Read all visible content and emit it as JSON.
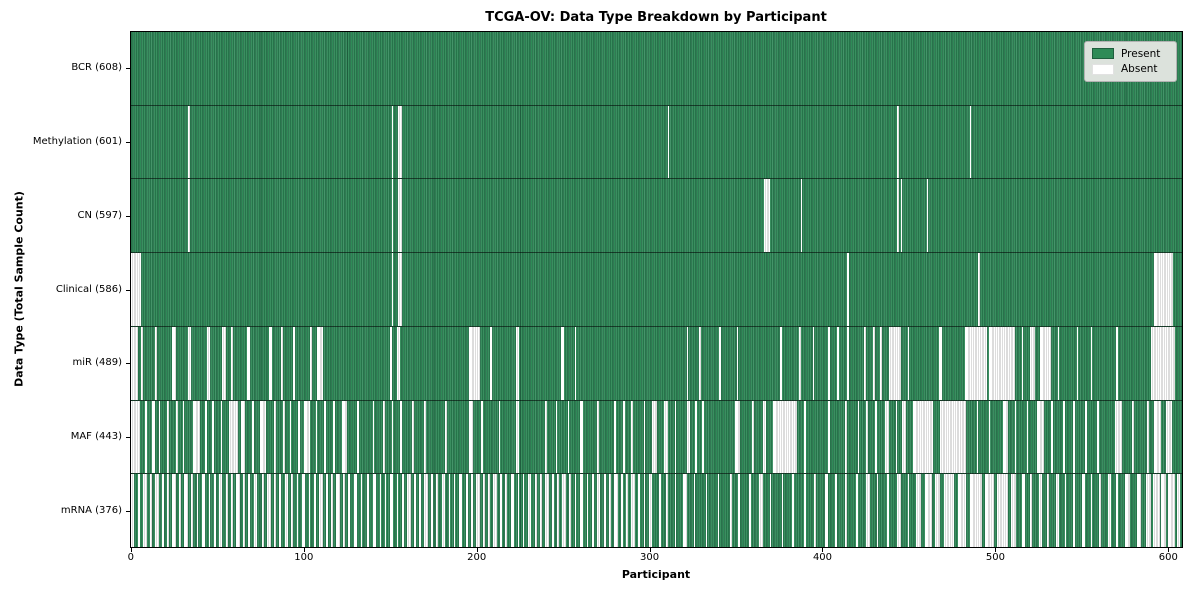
{
  "colors": {
    "present": "#2e8b57",
    "present_dark": "#1f5e3e",
    "present_light": "#45936a",
    "absent": "#ffffff",
    "absent_edge": "#b9b9b9",
    "legend_bg": "#dce2dc"
  },
  "legend": {
    "present_label": "Present",
    "absent_label": "Absent"
  },
  "chart_data": {
    "type": "heatmap",
    "title": "TCGA-OV: Data Type Breakdown by Participant",
    "xlabel": "Participant",
    "ylabel": "Data Type (Total Sample Count)",
    "legend": [
      "Present",
      "Absent"
    ],
    "legend_position": "upper right",
    "grid": false,
    "total_participants": 608,
    "x_range": [
      0,
      608
    ],
    "x_ticks": [
      0,
      100,
      200,
      300,
      400,
      500,
      600
    ],
    "rows": [
      {
        "name": "BCR",
        "label": "BCR (608)",
        "present_count": 608,
        "absent_segments": []
      },
      {
        "name": "Methylation",
        "label": "Methylation (601)",
        "present_count": 601,
        "absent_segments": [
          [
            33,
            1
          ],
          [
            151,
            1
          ],
          [
            155,
            2
          ],
          [
            311,
            1
          ],
          [
            444,
            1
          ],
          [
            486,
            1
          ]
        ]
      },
      {
        "name": "CN",
        "label": "CN (597)",
        "present_count": 597,
        "absent_segments": [
          [
            33,
            1
          ],
          [
            151,
            1
          ],
          [
            155,
            2
          ],
          [
            367,
            3
          ],
          [
            388,
            1
          ],
          [
            444,
            1
          ],
          [
            446,
            1
          ],
          [
            461,
            1
          ]
        ]
      },
      {
        "name": "Clinical",
        "label": "Clinical (586)",
        "present_count": 586,
        "absent_segments": [
          [
            0,
            6
          ],
          [
            151,
            1
          ],
          [
            155,
            2
          ],
          [
            415,
            1
          ],
          [
            491,
            1
          ],
          [
            593,
            11
          ]
        ]
      },
      {
        "name": "miR",
        "label": "miR (489)",
        "present_count": 489,
        "absent_segments": [
          [
            0,
            4
          ],
          [
            6,
            1
          ],
          [
            14,
            1
          ],
          [
            24,
            2
          ],
          [
            33,
            2
          ],
          [
            44,
            2
          ],
          [
            53,
            2
          ],
          [
            58,
            1
          ],
          [
            67,
            2
          ],
          [
            80,
            2
          ],
          [
            87,
            1
          ],
          [
            94,
            1
          ],
          [
            104,
            1
          ],
          [
            108,
            3
          ],
          [
            150,
            1
          ],
          [
            154,
            2
          ],
          [
            196,
            6
          ],
          [
            208,
            1
          ],
          [
            223,
            2
          ],
          [
            249,
            2
          ],
          [
            257,
            1
          ],
          [
            322,
            1
          ],
          [
            329,
            1
          ],
          [
            341,
            1
          ],
          [
            351,
            1
          ],
          [
            376,
            1
          ],
          [
            387,
            1
          ],
          [
            395,
            1
          ],
          [
            404,
            1
          ],
          [
            409,
            1
          ],
          [
            415,
            1
          ],
          [
            425,
            1
          ],
          [
            430,
            1
          ],
          [
            434,
            1
          ],
          [
            439,
            7
          ],
          [
            450,
            1
          ],
          [
            468,
            2
          ],
          [
            483,
            13
          ],
          [
            497,
            15
          ],
          [
            516,
            1
          ],
          [
            521,
            3
          ],
          [
            527,
            6
          ],
          [
            537,
            1
          ],
          [
            548,
            1
          ],
          [
            556,
            1
          ],
          [
            571,
            1
          ],
          [
            591,
            14
          ]
        ]
      },
      {
        "name": "MAF",
        "label": "MAF (443)",
        "present_count": 443,
        "absent_segments": [
          [
            0,
            5
          ],
          [
            8,
            1
          ],
          [
            12,
            2
          ],
          [
            16,
            1
          ],
          [
            21,
            1
          ],
          [
            26,
            1
          ],
          [
            30,
            1
          ],
          [
            36,
            4
          ],
          [
            43,
            1
          ],
          [
            47,
            1
          ],
          [
            52,
            1
          ],
          [
            57,
            5
          ],
          [
            64,
            2
          ],
          [
            70,
            1
          ],
          [
            75,
            3
          ],
          [
            83,
            1
          ],
          [
            88,
            1
          ],
          [
            92,
            1
          ],
          [
            97,
            1
          ],
          [
            100,
            4
          ],
          [
            107,
            1
          ],
          [
            112,
            1
          ],
          [
            117,
            1
          ],
          [
            122,
            3
          ],
          [
            131,
            1
          ],
          [
            140,
            1
          ],
          [
            146,
            1
          ],
          [
            151,
            1
          ],
          [
            156,
            1
          ],
          [
            163,
            1
          ],
          [
            170,
            1
          ],
          [
            182,
            1
          ],
          [
            196,
            2
          ],
          [
            203,
            1
          ],
          [
            213,
            1
          ],
          [
            223,
            2
          ],
          [
            240,
            1
          ],
          [
            246,
            1
          ],
          [
            253,
            1
          ],
          [
            260,
            2
          ],
          [
            270,
            1
          ],
          [
            280,
            1
          ],
          [
            285,
            1
          ],
          [
            290,
            1
          ],
          [
            297,
            1
          ],
          [
            302,
            3
          ],
          [
            309,
            2
          ],
          [
            315,
            1
          ],
          [
            322,
            2
          ],
          [
            327,
            1
          ],
          [
            331,
            1
          ],
          [
            350,
            3
          ],
          [
            360,
            1
          ],
          [
            366,
            2
          ],
          [
            372,
            14
          ],
          [
            390,
            1
          ],
          [
            404,
            1
          ],
          [
            414,
            1
          ],
          [
            421,
            1
          ],
          [
            426,
            1
          ],
          [
            431,
            1
          ],
          [
            437,
            2
          ],
          [
            443,
            1
          ],
          [
            447,
            2
          ],
          [
            453,
            12
          ],
          [
            469,
            15
          ],
          [
            490,
            1
          ],
          [
            497,
            1
          ],
          [
            505,
            3
          ],
          [
            512,
            1
          ],
          [
            519,
            1
          ],
          [
            525,
            4
          ],
          [
            533,
            1
          ],
          [
            540,
            1
          ],
          [
            546,
            1
          ],
          [
            553,
            1
          ],
          [
            560,
            1
          ],
          [
            570,
            4
          ],
          [
            580,
            1
          ],
          [
            589,
            1
          ],
          [
            593,
            4
          ],
          [
            600,
            3
          ]
        ]
      },
      {
        "name": "mRNA",
        "label": "mRNA (376)",
        "present_count": 376,
        "absent_segments": [
          [
            0,
            2
          ],
          [
            4,
            1
          ],
          [
            7,
            2
          ],
          [
            11,
            1
          ],
          [
            14,
            2
          ],
          [
            18,
            1
          ],
          [
            21,
            1
          ],
          [
            24,
            2
          ],
          [
            28,
            1
          ],
          [
            31,
            2
          ],
          [
            35,
            1
          ],
          [
            38,
            1
          ],
          [
            41,
            2
          ],
          [
            45,
            1
          ],
          [
            48,
            1
          ],
          [
            51,
            2
          ],
          [
            55,
            1
          ],
          [
            58,
            1
          ],
          [
            61,
            2
          ],
          [
            65,
            1
          ],
          [
            68,
            1
          ],
          [
            71,
            2
          ],
          [
            76,
            1
          ],
          [
            79,
            2
          ],
          [
            83,
            1
          ],
          [
            86,
            1
          ],
          [
            89,
            2
          ],
          [
            93,
            1
          ],
          [
            96,
            1
          ],
          [
            99,
            2
          ],
          [
            103,
            1
          ],
          [
            106,
            1
          ],
          [
            109,
            2
          ],
          [
            113,
            1
          ],
          [
            116,
            1
          ],
          [
            119,
            2
          ],
          [
            123,
            1
          ],
          [
            126,
            1
          ],
          [
            129,
            2
          ],
          [
            133,
            1
          ],
          [
            137,
            1
          ],
          [
            140,
            2
          ],
          [
            144,
            1
          ],
          [
            147,
            1
          ],
          [
            150,
            2
          ],
          [
            154,
            1
          ],
          [
            157,
            1
          ],
          [
            160,
            2
          ],
          [
            164,
            1
          ],
          [
            167,
            1
          ],
          [
            170,
            2
          ],
          [
            174,
            1
          ],
          [
            177,
            1
          ],
          [
            180,
            2
          ],
          [
            184,
            1
          ],
          [
            187,
            1
          ],
          [
            190,
            2
          ],
          [
            194,
            1
          ],
          [
            197,
            1
          ],
          [
            200,
            2
          ],
          [
            204,
            1
          ],
          [
            207,
            1
          ],
          [
            210,
            2
          ],
          [
            214,
            1
          ],
          [
            217,
            1
          ],
          [
            220,
            2
          ],
          [
            224,
            1
          ],
          [
            227,
            1
          ],
          [
            230,
            2
          ],
          [
            234,
            1
          ],
          [
            237,
            1
          ],
          [
            240,
            2
          ],
          [
            244,
            1
          ],
          [
            247,
            1
          ],
          [
            250,
            2
          ],
          [
            254,
            1
          ],
          [
            257,
            1
          ],
          [
            260,
            2
          ],
          [
            264,
            1
          ],
          [
            267,
            1
          ],
          [
            270,
            2
          ],
          [
            274,
            1
          ],
          [
            277,
            1
          ],
          [
            280,
            2
          ],
          [
            284,
            1
          ],
          [
            287,
            1
          ],
          [
            290,
            2
          ],
          [
            294,
            1
          ],
          [
            297,
            1
          ],
          [
            300,
            2
          ],
          [
            306,
            1
          ],
          [
            310,
            1
          ],
          [
            315,
            1
          ],
          [
            320,
            2
          ],
          [
            326,
            1
          ],
          [
            333,
            1
          ],
          [
            340,
            1
          ],
          [
            347,
            1
          ],
          [
            352,
            1
          ],
          [
            358,
            1
          ],
          [
            364,
            2
          ],
          [
            370,
            1
          ],
          [
            377,
            1
          ],
          [
            383,
            1
          ],
          [
            390,
            1
          ],
          [
            396,
            1
          ],
          [
            402,
            2
          ],
          [
            408,
            1
          ],
          [
            414,
            1
          ],
          [
            420,
            1
          ],
          [
            426,
            2
          ],
          [
            432,
            1
          ],
          [
            438,
            1
          ],
          [
            444,
            2
          ],
          [
            450,
            1
          ],
          [
            455,
            3
          ],
          [
            460,
            4
          ],
          [
            466,
            3
          ],
          [
            471,
            6
          ],
          [
            479,
            5
          ],
          [
            486,
            7
          ],
          [
            495,
            5
          ],
          [
            502,
            6
          ],
          [
            510,
            3
          ],
          [
            516,
            2
          ],
          [
            521,
            1
          ],
          [
            526,
            2
          ],
          [
            531,
            1
          ],
          [
            536,
            2
          ],
          [
            541,
            1
          ],
          [
            546,
            1
          ],
          [
            551,
            2
          ],
          [
            556,
            1
          ],
          [
            561,
            1
          ],
          [
            566,
            2
          ],
          [
            571,
            1
          ],
          [
            576,
            3
          ],
          [
            583,
            2
          ],
          [
            588,
            3
          ],
          [
            592,
            4
          ],
          [
            597,
            3
          ],
          [
            601,
            4
          ],
          [
            606,
            2
          ]
        ]
      }
    ]
  }
}
